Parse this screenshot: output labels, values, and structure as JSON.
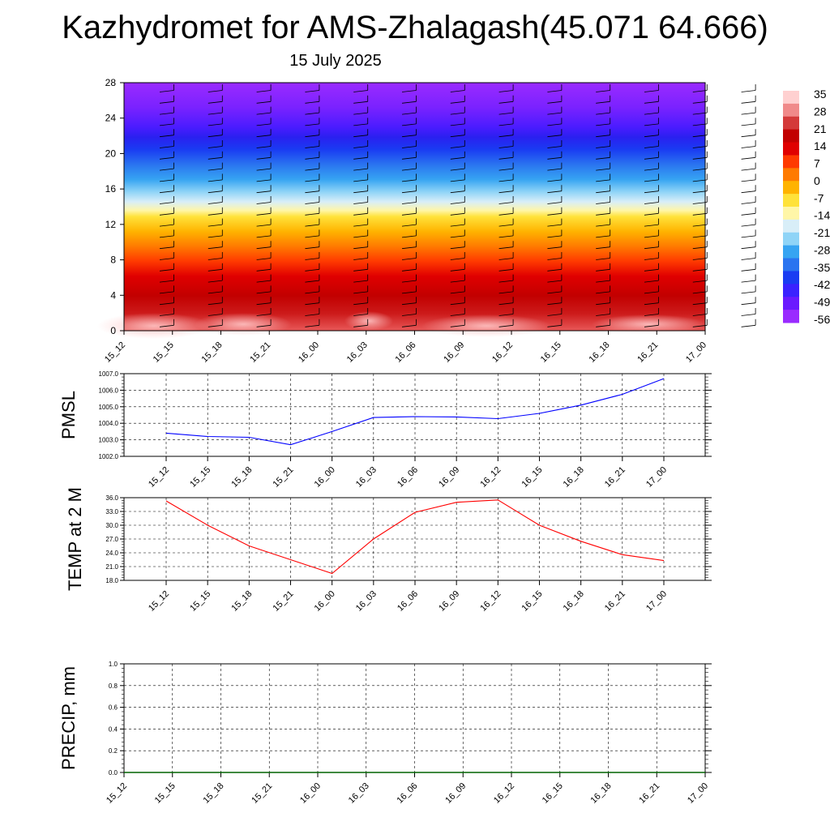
{
  "header": {
    "title": "Kazhydromet for AMS-Zhalagash(45.071 64.666)",
    "subtitle": "15 July 2025"
  },
  "colors": {
    "pmsl_line": "#0000ff",
    "temp_line": "#ff0000",
    "precip_line": "#006400",
    "colormap": [
      "#9a2bff",
      "#6a1aff",
      "#3a22ff",
      "#1a3cf2",
      "#2a74f0",
      "#36a4f2",
      "#8fd4f7",
      "#d8eef8",
      "#fff6a8",
      "#ffe23a",
      "#ffb300",
      "#ff7a00",
      "#ff3a00",
      "#e00000",
      "#c20000",
      "#d43a3a",
      "#f08a8a",
      "#ffd0d0"
    ]
  },
  "chart_data": [
    {
      "type": "heatmap",
      "title": "",
      "xlabel": "",
      "ylabel": "",
      "x_ticks": [
        "15_12",
        "15_15",
        "15_18",
        "15_21",
        "16_00",
        "16_03",
        "16_06",
        "16_09",
        "16_12",
        "16_15",
        "16_18",
        "16_21",
        "17_00"
      ],
      "y_ticks": [
        0,
        4,
        8,
        12,
        16,
        20,
        24,
        28
      ],
      "ylim": [
        0,
        28
      ],
      "colorbar_labels": [
        "35",
        "28",
        "21",
        "14",
        "7",
        "0",
        "-7",
        "-14",
        "-21",
        "-28",
        "-35",
        "-42",
        "-49",
        "-56"
      ],
      "wind_barbs": true
    },
    {
      "type": "line",
      "ylabel": "PMSL",
      "x": [
        "15_12",
        "15_15",
        "15_18",
        "15_21",
        "16_00",
        "16_03",
        "16_06",
        "16_09",
        "16_12",
        "16_15",
        "16_18",
        "16_21",
        "17_00"
      ],
      "y_ticks": [
        "1007.0",
        "1006.0",
        "1005.0",
        "1004.0",
        "1003.0",
        "1002.0"
      ],
      "ylim": [
        1002.0,
        1007.0
      ],
      "values": [
        1003.4,
        1003.2,
        1003.15,
        1002.7,
        1003.5,
        1004.35,
        1004.4,
        1004.38,
        1004.28,
        1004.6,
        1005.1,
        1005.75,
        1006.7
      ],
      "grid": true
    },
    {
      "type": "line",
      "ylabel": "TEMP at 2 M",
      "x": [
        "15_12",
        "15_15",
        "15_18",
        "15_21",
        "16_00",
        "16_03",
        "16_06",
        "16_09",
        "16_12",
        "16_15",
        "16_18",
        "16_21",
        "17_00"
      ],
      "y_ticks": [
        "36.0",
        "33.0",
        "30.0",
        "27.0",
        "24.0",
        "21.0",
        "18.0"
      ],
      "ylim": [
        18.0,
        36.0
      ],
      "values": [
        35.3,
        30.0,
        25.5,
        22.5,
        19.5,
        27.0,
        32.8,
        35.0,
        35.5,
        30.0,
        26.5,
        23.6,
        22.3
      ],
      "grid": true
    },
    {
      "type": "line",
      "ylabel": "PRECIP, mm",
      "x": [
        "15_12",
        "15_15",
        "15_18",
        "15_21",
        "16_00",
        "16_03",
        "16_06",
        "16_09",
        "16_12",
        "16_15",
        "16_18",
        "16_21",
        "17_00"
      ],
      "y_ticks": [
        "1.0",
        "0.8",
        "0.6",
        "0.4",
        "0.2",
        "0.0"
      ],
      "ylim": [
        0.0,
        1.0
      ],
      "values": [
        0,
        0,
        0,
        0,
        0,
        0,
        0,
        0,
        0,
        0,
        0,
        0,
        0
      ],
      "grid": true
    }
  ]
}
